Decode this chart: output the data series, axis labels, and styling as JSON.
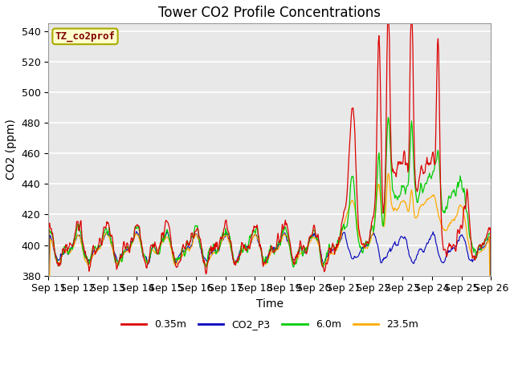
{
  "title": "Tower CO2 Profile Concentrations",
  "xlabel": "Time",
  "ylabel": "CO2 (ppm)",
  "ylim": [
    380,
    545
  ],
  "yticks": [
    380,
    400,
    420,
    440,
    460,
    480,
    500,
    520,
    540
  ],
  "legend_label": "TZ_co2prof",
  "legend_label_color": "#800000",
  "legend_label_bg": "#ffffcc",
  "legend_label_border": "#aaaa00",
  "series_colors": {
    "0.35m": "#dd0000",
    "CO2_P3": "#0000bb",
    "6.0m": "#00cc00",
    "23.5m": "#ffaa00"
  },
  "x_tick_labels": [
    "Sep 11",
    "Sep 12",
    "Sep 13",
    "Sep 14",
    "Sep 15",
    "Sep 16",
    "Sep 17",
    "Sep 18",
    "Sep 19",
    "Sep 20",
    "Sep 21",
    "Sep 22",
    "Sep 23",
    "Sep 24",
    "Sep 25",
    "Sep 26"
  ],
  "plot_bg_color": "#e8e8e8",
  "grid_color": "#ffffff",
  "font_size_title": 12,
  "font_size_axis": 10,
  "font_size_ticks": 9
}
